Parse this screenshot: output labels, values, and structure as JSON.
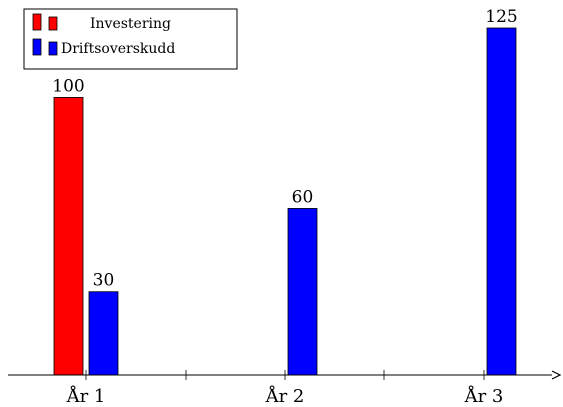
{
  "chart_data": {
    "type": "bar",
    "title": "",
    "xlabel": "",
    "ylabel": "",
    "categories": [
      "År 1",
      "År 2",
      "År 3"
    ],
    "series": [
      {
        "name": "Investering",
        "color": "#ff0000",
        "values": [
          100,
          null,
          null
        ]
      },
      {
        "name": "Driftsoverskudd",
        "color": "#0000ff",
        "values": [
          30,
          60,
          125
        ]
      }
    ],
    "data_labels": true,
    "ylim": [
      0,
      125
    ],
    "grid": false,
    "legend_position": "top-left"
  }
}
